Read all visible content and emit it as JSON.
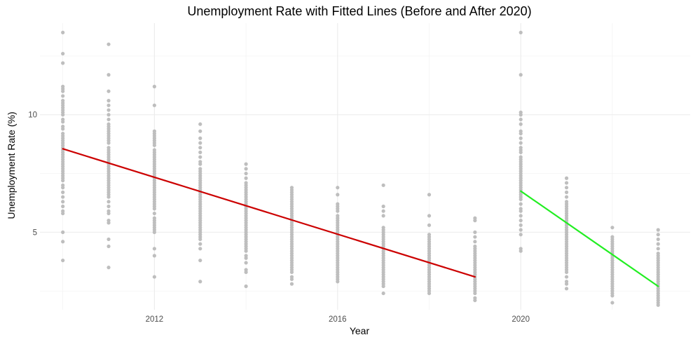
{
  "chart_data": {
    "type": "scatter",
    "title": "Unemployment Rate with Fitted Lines (Before and After 2020)",
    "xlabel": "Year",
    "ylabel": "Unemployment Rate (%)",
    "xlim": [
      2009.5,
      2023.7
    ],
    "ylim": [
      1.7,
      13.9
    ],
    "x_ticks": [
      2012,
      2016,
      2020
    ],
    "y_ticks": [
      5,
      10
    ],
    "x_minor_grid": [
      2010,
      2014,
      2018,
      2022
    ],
    "y_minor_grid": [
      2.5,
      7.5,
      12.5
    ],
    "grid": true,
    "point_color": "#bebebe",
    "scatter": [
      {
        "x": 2010,
        "y": [
          13.5,
          12.6,
          12.2,
          11.2,
          11.1,
          11.0,
          10.8,
          10.6,
          10.5,
          10.4,
          10.3,
          10.2,
          10.1,
          10.0,
          9.8,
          9.7,
          9.5,
          9.4,
          9.2,
          9.1,
          9.0,
          8.9,
          8.8,
          8.7,
          8.6,
          8.5,
          8.4,
          8.3,
          8.2,
          8.1,
          8.0,
          7.9,
          7.8,
          7.7,
          7.6,
          7.5,
          7.4,
          7.3,
          7.2,
          7.0,
          6.9,
          6.7,
          6.5,
          6.3,
          6.1,
          5.9,
          5.8,
          5.0,
          4.6,
          3.8
        ]
      },
      {
        "x": 2011,
        "y": [
          13.0,
          11.7,
          11.0,
          10.6,
          10.4,
          10.2,
          10.0,
          9.8,
          9.6,
          9.5,
          9.4,
          9.3,
          9.2,
          9.1,
          9.0,
          8.9,
          8.8,
          8.6,
          8.5,
          8.4,
          8.3,
          8.2,
          8.1,
          8.0,
          7.9,
          7.8,
          7.7,
          7.6,
          7.5,
          7.4,
          7.3,
          7.2,
          7.1,
          7.0,
          6.9,
          6.8,
          6.7,
          6.6,
          6.5,
          6.3,
          6.1,
          5.9,
          5.8,
          5.5,
          5.4,
          4.7,
          4.4,
          3.5
        ]
      },
      {
        "x": 2012,
        "y": [
          11.2,
          10.4,
          9.3,
          9.2,
          9.1,
          9.0,
          8.9,
          8.8,
          8.7,
          8.5,
          8.4,
          8.3,
          8.2,
          8.1,
          8.0,
          7.9,
          7.8,
          7.7,
          7.6,
          7.5,
          7.4,
          7.3,
          7.2,
          7.1,
          7.0,
          6.9,
          6.8,
          6.7,
          6.6,
          6.5,
          6.4,
          6.3,
          6.2,
          6.1,
          6.0,
          5.8,
          5.6,
          5.5,
          5.4,
          5.3,
          5.2,
          5.1,
          5.0,
          4.3,
          4.0,
          3.1
        ]
      },
      {
        "x": 2013,
        "y": [
          9.6,
          9.3,
          9.0,
          8.8,
          8.6,
          8.4,
          8.2,
          8.0,
          7.9,
          7.7,
          7.6,
          7.5,
          7.4,
          7.3,
          7.2,
          7.1,
          7.0,
          6.9,
          6.8,
          6.7,
          6.6,
          6.5,
          6.4,
          6.3,
          6.2,
          6.1,
          6.0,
          5.9,
          5.8,
          5.7,
          5.6,
          5.5,
          5.4,
          5.3,
          5.2,
          5.1,
          5.0,
          4.9,
          4.8,
          4.7,
          4.5,
          4.3,
          3.8,
          2.9
        ]
      },
      {
        "x": 2014,
        "y": [
          7.9,
          7.7,
          7.5,
          7.3,
          7.1,
          7.0,
          6.9,
          6.8,
          6.7,
          6.6,
          6.5,
          6.4,
          6.3,
          6.2,
          6.1,
          6.0,
          5.9,
          5.8,
          5.7,
          5.6,
          5.5,
          5.4,
          5.3,
          5.2,
          5.1,
          5.0,
          4.9,
          4.8,
          4.7,
          4.6,
          4.5,
          4.4,
          4.3,
          4.2,
          4.0,
          3.9,
          3.7,
          3.4,
          3.3,
          2.7
        ]
      },
      {
        "x": 2015,
        "y": [
          6.9,
          6.8,
          6.7,
          6.6,
          6.5,
          6.4,
          6.3,
          6.2,
          6.1,
          6.0,
          5.9,
          5.8,
          5.7,
          5.6,
          5.5,
          5.4,
          5.3,
          5.2,
          5.1,
          5.0,
          4.9,
          4.8,
          4.7,
          4.6,
          4.5,
          4.4,
          4.3,
          4.2,
          4.1,
          4.0,
          3.9,
          3.8,
          3.7,
          3.6,
          3.5,
          3.4,
          3.3,
          3.1,
          3.0,
          2.8
        ]
      },
      {
        "x": 2016,
        "y": [
          6.9,
          6.6,
          6.2,
          6.1,
          6.0,
          5.9,
          5.7,
          5.6,
          5.5,
          5.4,
          5.3,
          5.2,
          5.1,
          5.0,
          4.9,
          4.8,
          4.7,
          4.6,
          4.5,
          4.4,
          4.3,
          4.2,
          4.1,
          4.0,
          3.9,
          3.8,
          3.7,
          3.6,
          3.5,
          3.4,
          3.3,
          3.2,
          3.1,
          3.0,
          2.9
        ]
      },
      {
        "x": 2017,
        "y": [
          7.0,
          6.1,
          5.9,
          5.7,
          5.2,
          5.1,
          5.0,
          4.9,
          4.8,
          4.7,
          4.6,
          4.5,
          4.4,
          4.3,
          4.2,
          4.1,
          4.0,
          3.9,
          3.8,
          3.7,
          3.6,
          3.5,
          3.4,
          3.3,
          3.2,
          3.1,
          3.0,
          2.9,
          2.8,
          2.7,
          2.4
        ]
      },
      {
        "x": 2018,
        "y": [
          6.6,
          5.7,
          5.3,
          4.9,
          4.8,
          4.7,
          4.6,
          4.5,
          4.4,
          4.3,
          4.2,
          4.1,
          4.0,
          3.9,
          3.8,
          3.7,
          3.6,
          3.5,
          3.4,
          3.3,
          3.2,
          3.1,
          3.0,
          2.9,
          2.8,
          2.7,
          2.6,
          2.5,
          2.4
        ]
      },
      {
        "x": 2019,
        "y": [
          5.6,
          5.5,
          5.0,
          4.8,
          4.6,
          4.4,
          4.3,
          4.2,
          4.1,
          4.0,
          3.9,
          3.8,
          3.7,
          3.6,
          3.5,
          3.4,
          3.3,
          3.2,
          3.1,
          3.0,
          2.9,
          2.8,
          2.7,
          2.6,
          2.5,
          2.4,
          2.2,
          2.1
        ]
      },
      {
        "x": 2020,
        "y": [
          13.5,
          11.7,
          10.1,
          10.0,
          9.8,
          9.6,
          9.3,
          9.2,
          9.0,
          8.8,
          8.6,
          8.5,
          8.4,
          8.2,
          8.1,
          8.0,
          7.9,
          7.8,
          7.7,
          7.6,
          7.5,
          7.4,
          7.3,
          7.2,
          7.1,
          7.0,
          6.9,
          6.8,
          6.7,
          6.6,
          6.5,
          6.4,
          6.2,
          6.0,
          5.9,
          5.7,
          5.5,
          5.3,
          5.1,
          4.9,
          4.3,
          4.2
        ]
      },
      {
        "x": 2021,
        "y": [
          7.3,
          7.1,
          6.9,
          6.7,
          6.5,
          6.3,
          6.2,
          6.1,
          6.0,
          5.9,
          5.8,
          5.7,
          5.6,
          5.5,
          5.4,
          5.3,
          5.2,
          5.1,
          5.0,
          4.9,
          4.8,
          4.7,
          4.6,
          4.5,
          4.4,
          4.3,
          4.2,
          4.1,
          4.0,
          3.9,
          3.8,
          3.7,
          3.6,
          3.5,
          3.4,
          3.3,
          3.1,
          2.9,
          2.8,
          2.6
        ]
      },
      {
        "x": 2022,
        "y": [
          5.2,
          4.8,
          4.7,
          4.6,
          4.5,
          4.4,
          4.3,
          4.2,
          4.1,
          4.0,
          3.9,
          3.8,
          3.7,
          3.6,
          3.5,
          3.4,
          3.3,
          3.2,
          3.1,
          3.0,
          2.9,
          2.8,
          2.7,
          2.6,
          2.5,
          2.4,
          2.3,
          2.0
        ]
      },
      {
        "x": 2023,
        "y": [
          5.1,
          4.9,
          4.7,
          4.5,
          4.3,
          4.1,
          4.0,
          3.9,
          3.8,
          3.7,
          3.6,
          3.5,
          3.4,
          3.3,
          3.2,
          3.1,
          3.0,
          2.9,
          2.8,
          2.7,
          2.6,
          2.5,
          2.4,
          2.3,
          2.2,
          2.1,
          2.0,
          1.9
        ]
      }
    ],
    "fitted_lines": [
      {
        "segment": "before-2020",
        "color": "#cc0000",
        "x": [
          2010,
          2019
        ],
        "y": [
          8.55,
          3.1
        ]
      },
      {
        "segment": "after-2020",
        "color": "#22ee22",
        "x": [
          2020,
          2023
        ],
        "y": [
          6.75,
          2.7
        ]
      }
    ]
  }
}
